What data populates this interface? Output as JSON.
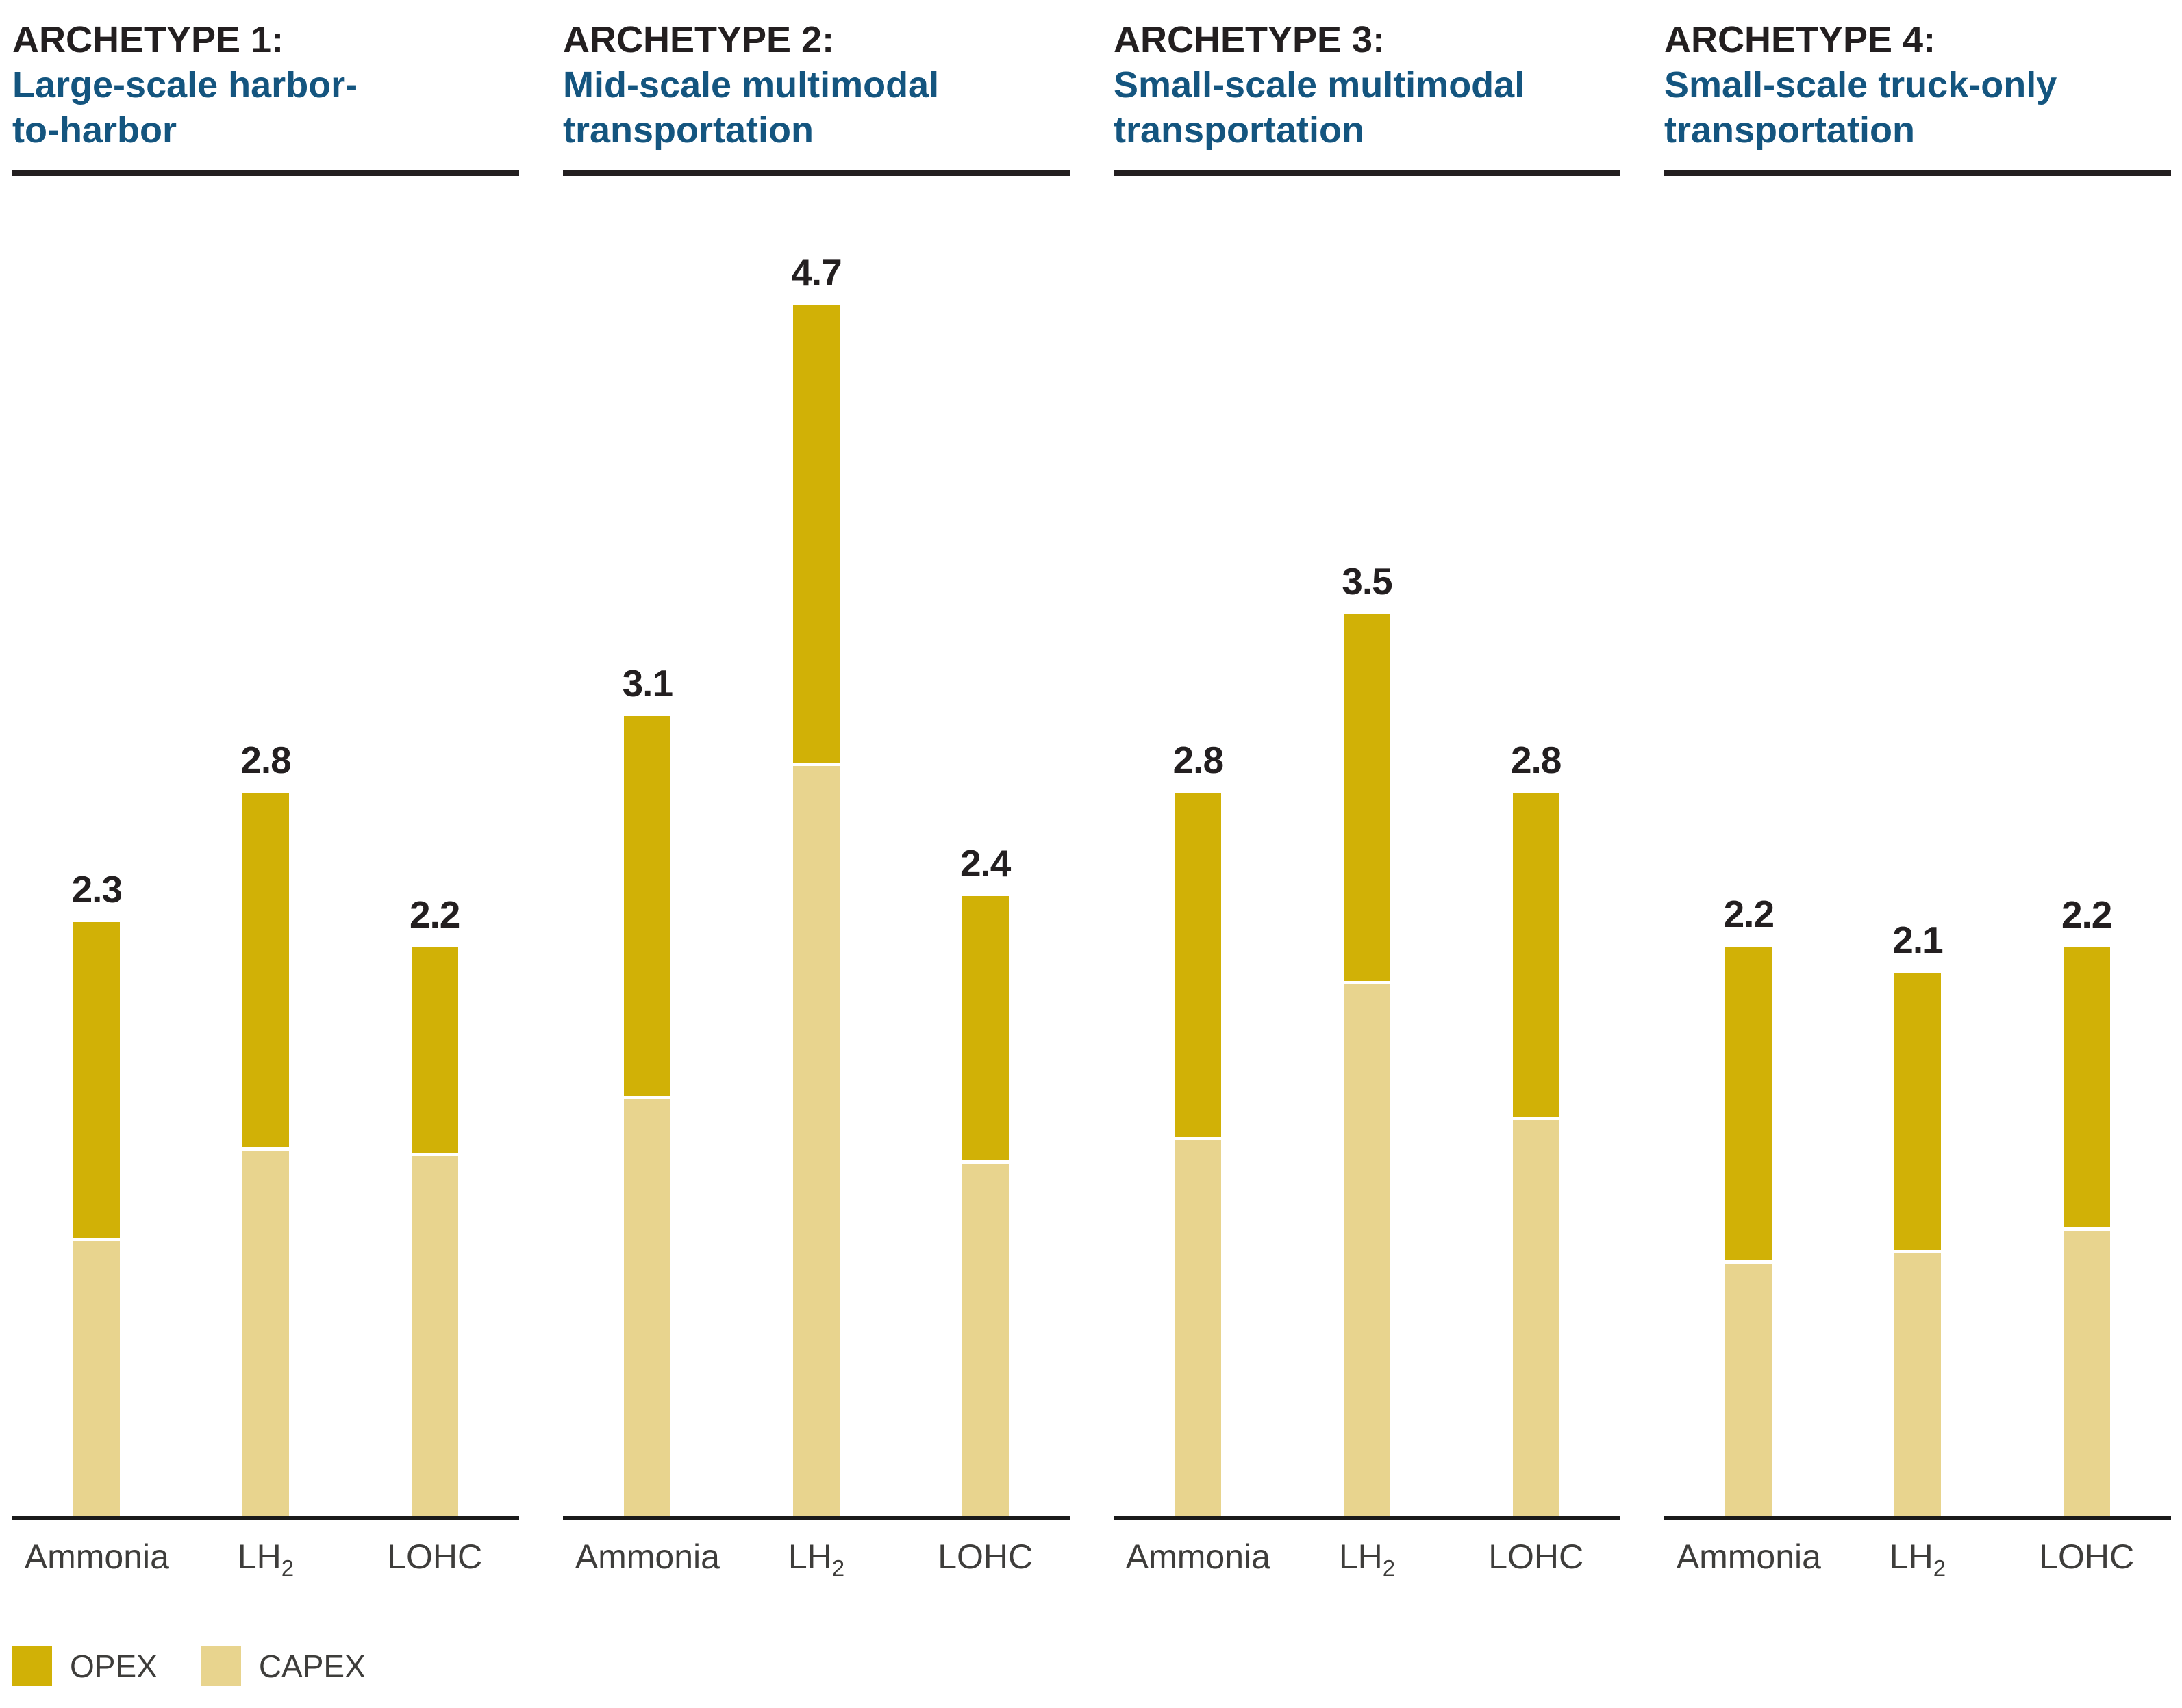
{
  "legend": {
    "items": [
      {
        "label": "OPEX",
        "series": "opex"
      },
      {
        "label": "CAPEX",
        "series": "capex"
      }
    ]
  },
  "chart_data": {
    "type": "bar",
    "stacked": true,
    "orientation": "vertical",
    "grid": false,
    "y_axis_visible": false,
    "value_labels": "total shown above each bar, one decimal",
    "ylim": [
      0,
      5
    ],
    "legend_position": "bottom-left",
    "categories": [
      "Ammonia",
      "LH2",
      "LOHC"
    ],
    "series_names": [
      "CAPEX",
      "OPEX"
    ],
    "colors": {
      "opex": "#D1B106",
      "capex": "#E8D48E",
      "archetype_text": "#231F20",
      "subtitle_text": "#14557F",
      "value_text": "#231F20",
      "category_text": "#3E3D3B",
      "rule": "#231F20",
      "axis": "#1A1A1A"
    },
    "panels": [
      {
        "archetype": "ARCHETYPE 1:",
        "subtitle_lines": [
          "Large-scale harbor-",
          "to-harbor"
        ],
        "bars": [
          {
            "category": "Ammonia",
            "category_sub": "",
            "total": 2.3,
            "total_label": "2.3",
            "capex": 1.07,
            "opex": 1.23
          },
          {
            "category": "LH",
            "category_sub": "2",
            "total": 2.8,
            "total_label": "2.8",
            "capex": 1.42,
            "opex": 1.38
          },
          {
            "category": "LOHC",
            "category_sub": "",
            "total": 2.2,
            "total_label": "2.2",
            "capex": 1.4,
            "opex": 0.8
          }
        ]
      },
      {
        "archetype": "ARCHETYPE 2:",
        "subtitle_lines": [
          "Mid-scale multimodal",
          "transportation"
        ],
        "bars": [
          {
            "category": "Ammonia",
            "category_sub": "",
            "total": 3.1,
            "total_label": "3.1",
            "capex": 1.62,
            "opex": 1.48
          },
          {
            "category": "LH",
            "category_sub": "2",
            "total": 4.7,
            "total_label": "4.7",
            "capex": 2.92,
            "opex": 1.78
          },
          {
            "category": "LOHC",
            "category_sub": "",
            "total": 2.4,
            "total_label": "2.4",
            "capex": 1.37,
            "opex": 1.03
          }
        ]
      },
      {
        "archetype": "ARCHETYPE 3:",
        "subtitle_lines": [
          "Small-scale multimodal",
          "transportation"
        ],
        "bars": [
          {
            "category": "Ammonia",
            "category_sub": "",
            "total": 2.8,
            "total_label": "2.8",
            "capex": 1.46,
            "opex": 1.34
          },
          {
            "category": "LH",
            "category_sub": "2",
            "total": 3.5,
            "total_label": "3.5",
            "capex": 2.07,
            "opex": 1.43
          },
          {
            "category": "LOHC",
            "category_sub": "",
            "total": 2.8,
            "total_label": "2.8",
            "capex": 1.54,
            "opex": 1.26
          }
        ]
      },
      {
        "archetype": "ARCHETYPE 4:",
        "subtitle_lines": [
          "Small-scale truck-only",
          "transportation"
        ],
        "bars": [
          {
            "category": "Ammonia",
            "category_sub": "",
            "total": 2.2,
            "total_label": "2.2",
            "capex": 0.98,
            "opex": 1.22
          },
          {
            "category": "LH",
            "category_sub": "2",
            "total": 2.1,
            "total_label": "2.1",
            "capex": 1.02,
            "opex": 1.08
          },
          {
            "category": "LOHC",
            "category_sub": "",
            "total": 2.2,
            "total_label": "2.2",
            "capex": 1.11,
            "opex": 1.09
          }
        ]
      }
    ]
  }
}
